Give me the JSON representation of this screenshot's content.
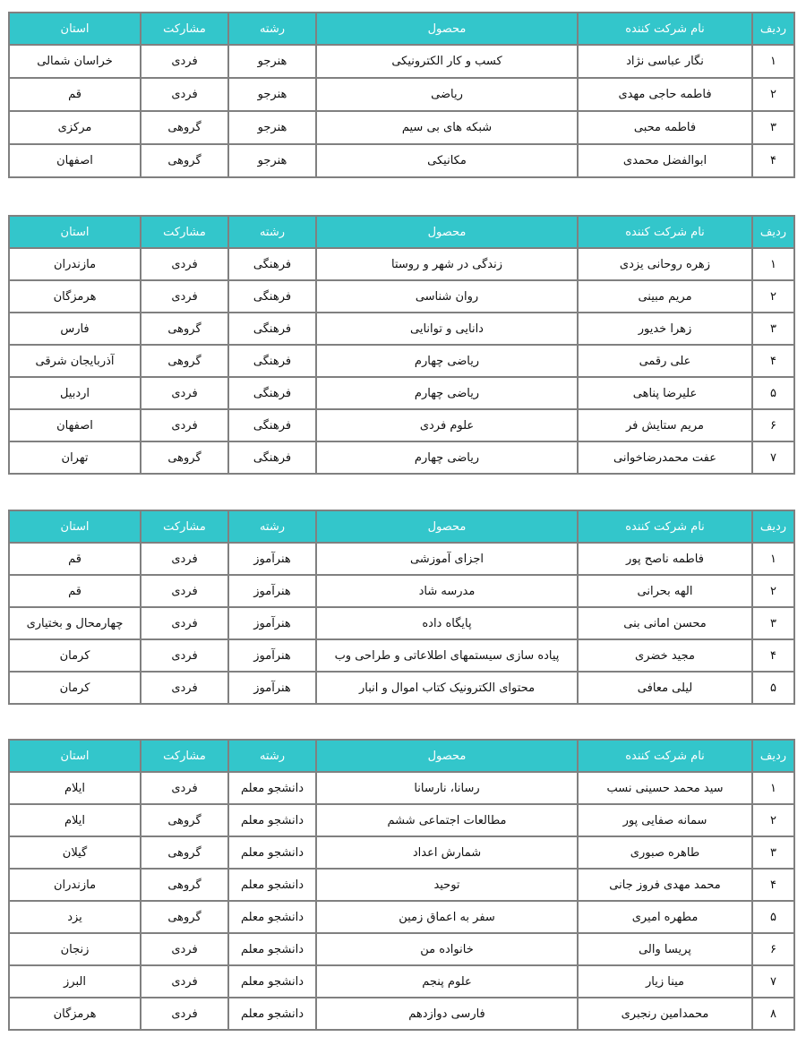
{
  "columns": [
    "ردیف",
    "نام شرکت کننده",
    "محصول",
    "رشته",
    "مشارکت",
    "استان"
  ],
  "colors": {
    "header_bg": "#33c6cb",
    "border": "#808080"
  },
  "tables": [
    {
      "rows": [
        [
          "۱",
          "نگار عباسی نژاد",
          "کسب و کار الکترونیکی",
          "هنرجو",
          "فردی",
          "خراسان شمالی"
        ],
        [
          "۲",
          "فاطمه حاجی مهدی",
          "ریاضی",
          "هنرجو",
          "فردی",
          "قم"
        ],
        [
          "۳",
          "فاطمه محبی",
          "شبکه های بی سیم",
          "هنرجو",
          "گروهی",
          "مرکزی"
        ],
        [
          "۴",
          "ابوالفضل محمدی",
          "مکانیکی",
          "هنرجو",
          "گروهی",
          "اصفهان"
        ]
      ]
    },
    {
      "rows": [
        [
          "۱",
          "زهره روحانی یزدی",
          "زندگی در شهر و روستا",
          "فرهنگی",
          "فردی",
          "مازندران"
        ],
        [
          "۲",
          "مریم مبینی",
          "روان شناسی",
          "فرهنگی",
          "فردی",
          "هرمزگان"
        ],
        [
          "۳",
          "زهرا خدیور",
          "دانایی و توانایی",
          "فرهنگی",
          "گروهی",
          "فارس"
        ],
        [
          "۴",
          "علی رقمی",
          "ریاضی چهارم",
          "فرهنگی",
          "گروهی",
          "آذربایجان شرقی"
        ],
        [
          "۵",
          "علیرضا پناهی",
          "ریاضی چهارم",
          "فرهنگی",
          "فردی",
          "اردبیل"
        ],
        [
          "۶",
          "مریم ستایش فر",
          "علوم فردی",
          "فرهنگی",
          "فردی",
          "اصفهان"
        ],
        [
          "۷",
          "عفت محمدرضاخوانی",
          "ریاضی چهارم",
          "فرهنگی",
          "گروهی",
          "تهران"
        ]
      ]
    },
    {
      "rows": [
        [
          "۱",
          "فاطمه ناصح پور",
          "اجزای آموزشی",
          "هنرآموز",
          "فردی",
          "قم"
        ],
        [
          "۲",
          "الهه بحرانی",
          "مدرسه شاد",
          "هنرآموز",
          "فردی",
          "قم"
        ],
        [
          "۳",
          "محسن امانی بنی",
          "پایگاه داده",
          "هنرآموز",
          "فردی",
          "چهارمحال و بختیاری"
        ],
        [
          "۴",
          "مجید خضری",
          "پیاده سازی سیستمهای اطلاعاتی و طراحی وب",
          "هنرآموز",
          "فردی",
          "کرمان"
        ],
        [
          "۵",
          "لیلی معافی",
          "محتوای الکترونیک کتاب اموال و انبار",
          "هنرآموز",
          "فردی",
          "کرمان"
        ]
      ]
    },
    {
      "rows": [
        [
          "۱",
          "سید محمد حسینی نسب",
          "رسانا، نارسانا",
          "دانشجو معلم",
          "فردی",
          "ایلام"
        ],
        [
          "۲",
          "سمانه صفایی پور",
          "مطالعات اجتماعی ششم",
          "دانشجو معلم",
          "گروهی",
          "ایلام"
        ],
        [
          "۳",
          "طاهره صبوری",
          "شمارش اعداد",
          "دانشجو معلم",
          "گروهی",
          "گیلان"
        ],
        [
          "۴",
          "محمد مهدی فروز جانی",
          "توحید",
          "دانشجو معلم",
          "گروهی",
          "مازندران"
        ],
        [
          "۵",
          "مطهره امیری",
          "سفر به اعماق زمین",
          "دانشجو معلم",
          "گروهی",
          "یزد"
        ],
        [
          "۶",
          "پریسا والی",
          "خانواده من",
          "دانشجو معلم",
          "فردی",
          "زنجان"
        ],
        [
          "۷",
          "مینا زیار",
          "علوم پنجم",
          "دانشجو معلم",
          "فردی",
          "البرز"
        ],
        [
          "۸",
          "محمدامین رنجبری",
          "فارسی دوازدهم",
          "دانشجو معلم",
          "فردی",
          "هرمزگان"
        ]
      ]
    }
  ]
}
